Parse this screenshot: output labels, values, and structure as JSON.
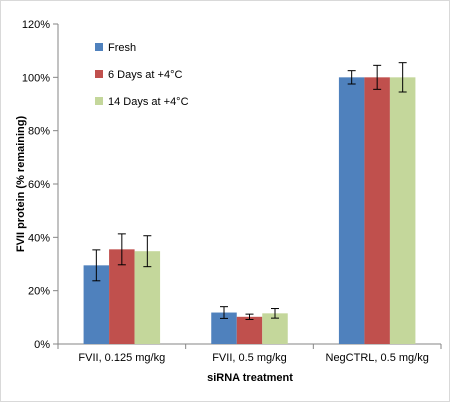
{
  "chart_data": {
    "type": "bar",
    "title": "",
    "xlabel": "siRNA treatment",
    "ylabel": "FVII protein (% remaining)",
    "ylim": [
      0,
      120
    ],
    "yticks": [
      0,
      20,
      40,
      60,
      80,
      100,
      120
    ],
    "ytick_labels": [
      "0%",
      "20%",
      "40%",
      "60%",
      "80%",
      "100%",
      "120%"
    ],
    "categories": [
      "FVII, 0.125 mg/kg",
      "FVII, 0.5 mg/kg",
      "NegCTRL, 0.5 mg/kg"
    ],
    "series": [
      {
        "name": "Fresh",
        "color": "#4f81bd",
        "values": [
          29.5,
          11.8,
          100
        ],
        "errors": [
          5.8,
          2.2,
          2.5
        ]
      },
      {
        "name": "6 Days at +4°C",
        "color": "#c0504d",
        "values": [
          35.5,
          10.2,
          100
        ],
        "errors": [
          5.8,
          1.0,
          4.5
        ]
      },
      {
        "name": "14 Days at +4°C",
        "color": "#c4d79b",
        "values": [
          34.8,
          11.5,
          100
        ],
        "errors": [
          5.8,
          1.8,
          5.5
        ]
      }
    ],
    "grid": false,
    "legend_position": "top-left",
    "error_bars": true
  }
}
